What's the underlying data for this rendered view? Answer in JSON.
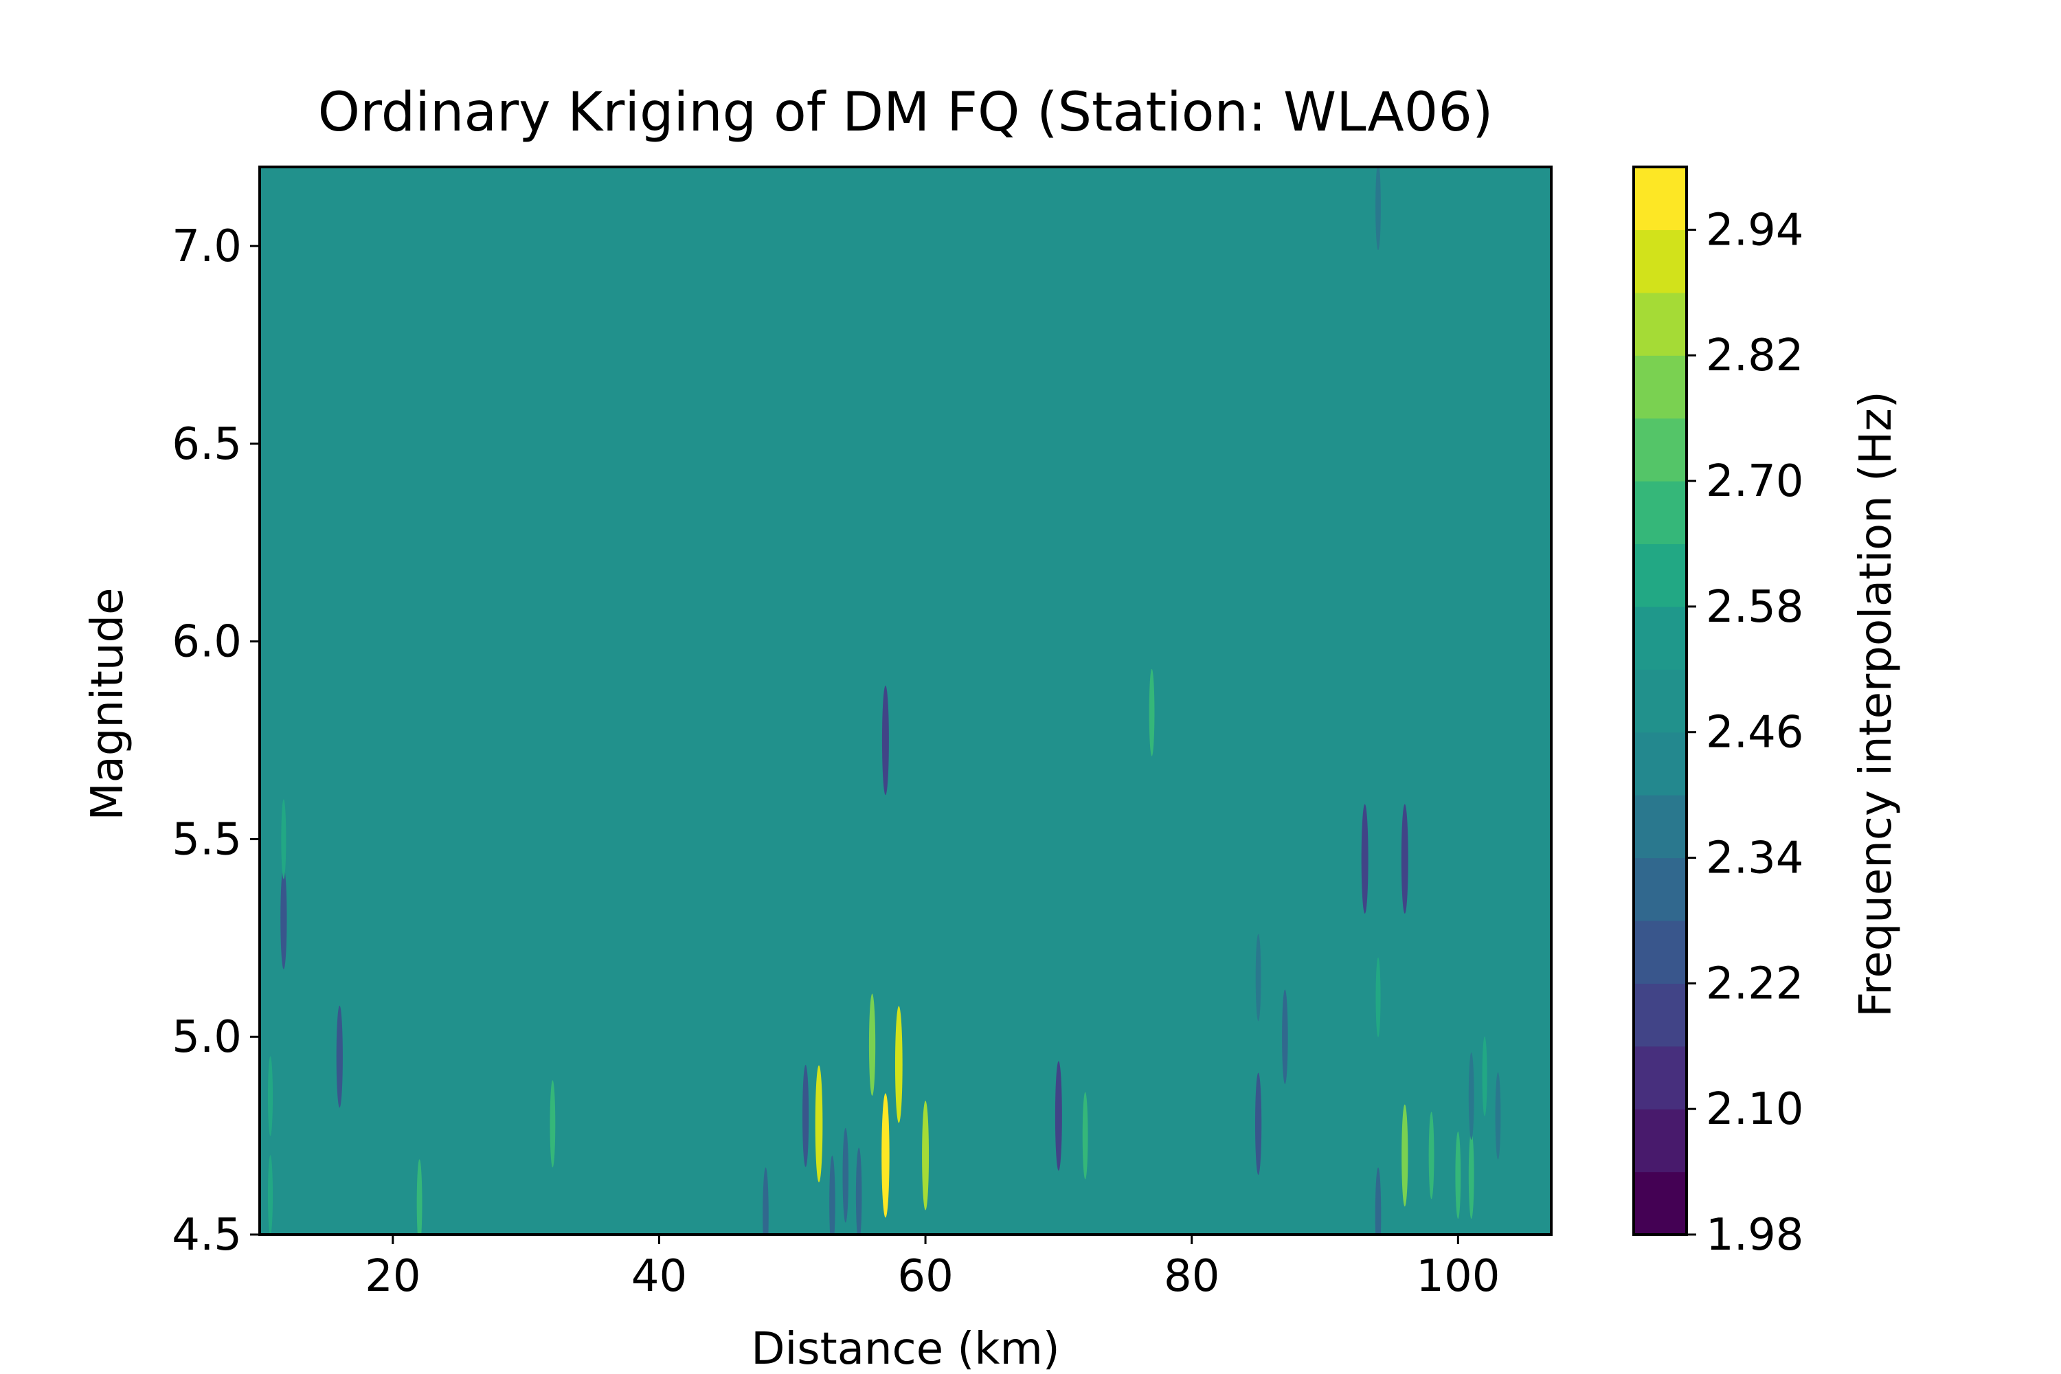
{
  "chart_data": {
    "type": "heatmap",
    "subtype": "filled-contour",
    "title": "Ordinary Kriging of DM FQ (Station: WLA06)",
    "xlabel": "Distance (km)",
    "ylabel": "Magnitude",
    "xlim": [
      10,
      107
    ],
    "ylim": [
      4.5,
      7.2
    ],
    "xticks": [
      20,
      40,
      60,
      80,
      100
    ],
    "xtick_labels": [
      "20",
      "40",
      "60",
      "80",
      "100"
    ],
    "yticks": [
      4.5,
      5.0,
      5.5,
      6.0,
      6.5,
      7.0
    ],
    "ytick_labels": [
      "4.5",
      "5.0",
      "5.5",
      "6.0",
      "6.5",
      "7.0"
    ],
    "background_value": 2.49,
    "colormap": "viridis",
    "colorbar": {
      "label": "Frequency interpolation (Hz)",
      "vmin": 1.98,
      "vmax": 3.0,
      "levels": [
        1.98,
        2.04,
        2.1,
        2.16,
        2.22,
        2.28,
        2.34,
        2.4,
        2.46,
        2.52,
        2.58,
        2.64,
        2.7,
        2.76,
        2.82,
        2.88,
        2.94,
        3.0
      ],
      "ticks": [
        1.98,
        2.1,
        2.22,
        2.34,
        2.46,
        2.58,
        2.7,
        2.82,
        2.94
      ],
      "tick_labels": [
        "1.98",
        "2.10",
        "2.22",
        "2.34",
        "2.46",
        "2.58",
        "2.70",
        "2.82",
        "2.94"
      ],
      "colors": [
        "#440154",
        "#481a6c",
        "#472f7d",
        "#414487",
        "#39568c",
        "#31688e",
        "#2a788e",
        "#23888e",
        "#21918c",
        "#1f988b",
        "#22a884",
        "#35b779",
        "#54c568",
        "#7ad151",
        "#a5db36",
        "#d2e21b",
        "#fde725"
      ]
    },
    "anomalies": [
      {
        "x": 10.8,
        "y": 4.85,
        "value": 2.58
      },
      {
        "x": 10.8,
        "y": 4.6,
        "value": 2.58
      },
      {
        "x": 11.8,
        "y": 5.3,
        "value": 2.22
      },
      {
        "x": 11.8,
        "y": 5.5,
        "value": 2.58
      },
      {
        "x": 16.0,
        "y": 4.95,
        "value": 2.22
      },
      {
        "x": 22.0,
        "y": 4.58,
        "value": 2.64
      },
      {
        "x": 32.0,
        "y": 4.78,
        "value": 2.64
      },
      {
        "x": 48.0,
        "y": 4.55,
        "value": 2.28
      },
      {
        "x": 51.0,
        "y": 4.8,
        "value": 2.22
      },
      {
        "x": 52.0,
        "y": 4.78,
        "value": 2.88
      },
      {
        "x": 53.0,
        "y": 4.58,
        "value": 2.28
      },
      {
        "x": 54.0,
        "y": 4.65,
        "value": 2.28
      },
      {
        "x": 55.0,
        "y": 4.6,
        "value": 2.28
      },
      {
        "x": 56.0,
        "y": 4.98,
        "value": 2.76
      },
      {
        "x": 57.0,
        "y": 5.75,
        "value": 2.16
      },
      {
        "x": 57.0,
        "y": 4.7,
        "value": 2.94
      },
      {
        "x": 58.0,
        "y": 4.93,
        "value": 2.88
      },
      {
        "x": 60.0,
        "y": 4.7,
        "value": 2.82
      },
      {
        "x": 70.0,
        "y": 4.8,
        "value": 2.16
      },
      {
        "x": 72.0,
        "y": 4.75,
        "value": 2.64
      },
      {
        "x": 77.0,
        "y": 5.82,
        "value": 2.64
      },
      {
        "x": 85.0,
        "y": 4.78,
        "value": 2.22
      },
      {
        "x": 85.0,
        "y": 5.15,
        "value": 2.34
      },
      {
        "x": 87.0,
        "y": 5.0,
        "value": 2.28
      },
      {
        "x": 93.0,
        "y": 5.45,
        "value": 2.16
      },
      {
        "x": 94.0,
        "y": 5.1,
        "value": 2.58
      },
      {
        "x": 94.0,
        "y": 4.55,
        "value": 2.28
      },
      {
        "x": 94.0,
        "y": 7.1,
        "value": 2.34
      },
      {
        "x": 96.0,
        "y": 5.45,
        "value": 2.16
      },
      {
        "x": 96.0,
        "y": 4.7,
        "value": 2.76
      },
      {
        "x": 98.0,
        "y": 4.7,
        "value": 2.64
      },
      {
        "x": 100.0,
        "y": 4.65,
        "value": 2.64
      },
      {
        "x": 101.0,
        "y": 4.65,
        "value": 2.64
      },
      {
        "x": 101.0,
        "y": 4.85,
        "value": 2.34
      },
      {
        "x": 102.0,
        "y": 4.9,
        "value": 2.58
      },
      {
        "x": 103.0,
        "y": 4.8,
        "value": 2.34
      }
    ]
  }
}
